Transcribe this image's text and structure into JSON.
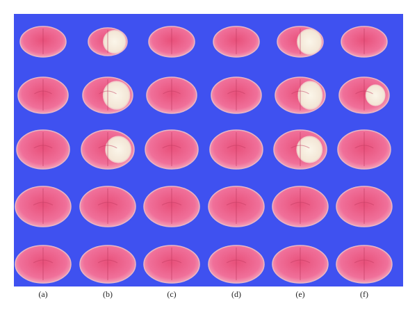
{
  "panel_labels": [
    "(a)",
    "(b)",
    "(c)",
    "(d)",
    "(e)",
    "(f)"
  ]
}
